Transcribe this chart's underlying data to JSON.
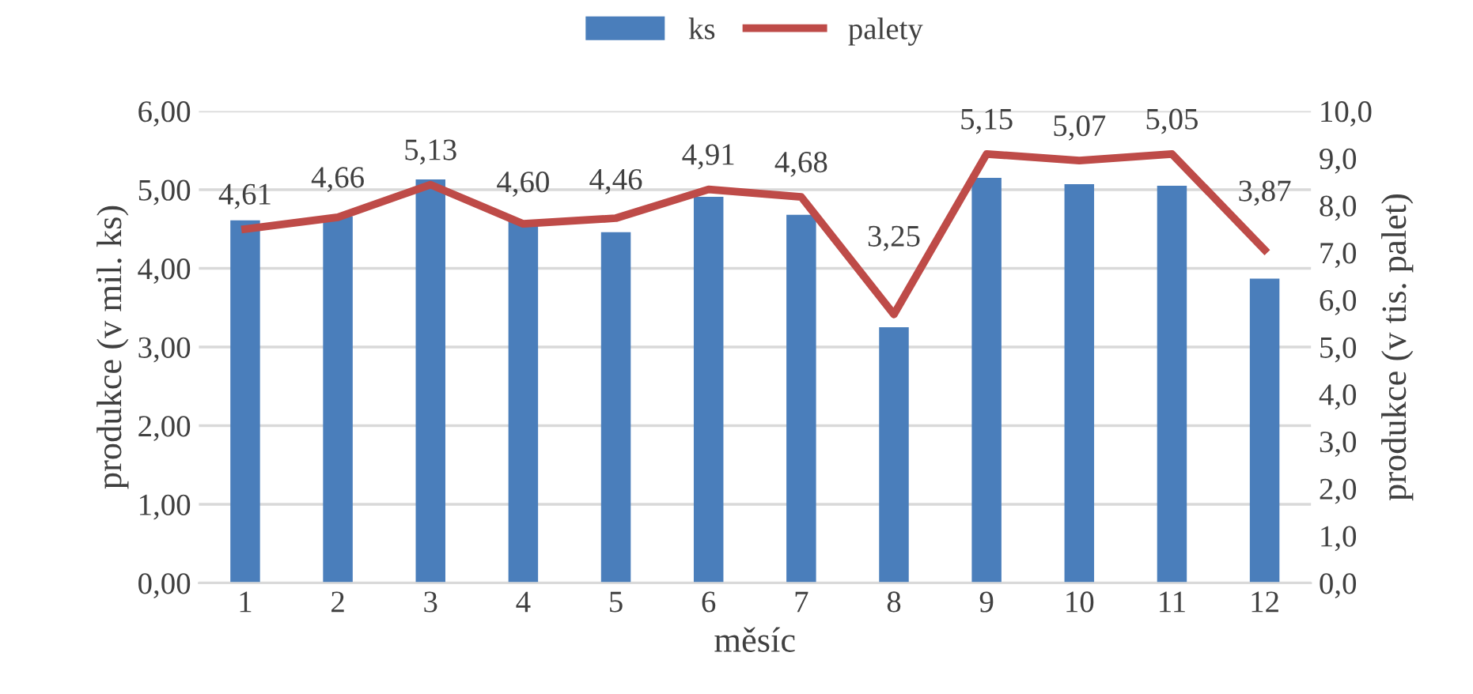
{
  "chart_data": {
    "type": "bar",
    "xlabel": "měsíc",
    "ylabel": "produkce (v mil. ks)",
    "y2label": "produkce (v tis. palet)",
    "categories": [
      "1",
      "2",
      "3",
      "4",
      "5",
      "6",
      "7",
      "8",
      "9",
      "10",
      "11",
      "12"
    ],
    "series": [
      {
        "name": "ks",
        "color": "#4a7ebb",
        "values": [
          4.61,
          4.66,
          5.13,
          4.6,
          4.46,
          4.91,
          4.68,
          3.25,
          5.15,
          5.07,
          5.05,
          3.87
        ],
        "value_labels": [
          "4,61",
          "4,66",
          "5,13",
          "4,60",
          "4,46",
          "4,91",
          "4,68",
          "3,25",
          "5,15",
          "5,07",
          "5,05",
          "3,87"
        ]
      },
      {
        "name": "palety",
        "type": "line",
        "axis": "y2",
        "color": "#be4b48",
        "values": [
          7.5,
          7.75,
          8.44,
          7.61,
          7.73,
          8.34,
          8.18,
          5.69,
          9.09,
          8.95,
          9.09,
          7.06
        ]
      }
    ],
    "ylim": [
      0,
      6
    ],
    "yticks": [
      {
        "value": 0,
        "label": "0,00"
      },
      {
        "value": 1,
        "label": "1,00"
      },
      {
        "value": 2,
        "label": "2,00"
      },
      {
        "value": 3,
        "label": "3,00"
      },
      {
        "value": 4,
        "label": "4,00"
      },
      {
        "value": 5,
        "label": "5,00"
      },
      {
        "value": 6,
        "label": "6,00"
      }
    ],
    "y2lim": [
      0,
      10
    ],
    "y2ticks": [
      {
        "value": 0,
        "label": "0,0"
      },
      {
        "value": 1,
        "label": "1,0"
      },
      {
        "value": 2,
        "label": "2,0"
      },
      {
        "value": 3,
        "label": "3,0"
      },
      {
        "value": 4,
        "label": "4,0"
      },
      {
        "value": 5,
        "label": "5,0"
      },
      {
        "value": 6,
        "label": "6,0"
      },
      {
        "value": 7,
        "label": "7,0"
      },
      {
        "value": 8,
        "label": "8,0"
      },
      {
        "value": 9,
        "label": "9,0"
      },
      {
        "value": 10,
        "label": "10,0"
      }
    ],
    "grid": "y",
    "legend": "top",
    "marker": "none",
    "line_style": "solid"
  }
}
